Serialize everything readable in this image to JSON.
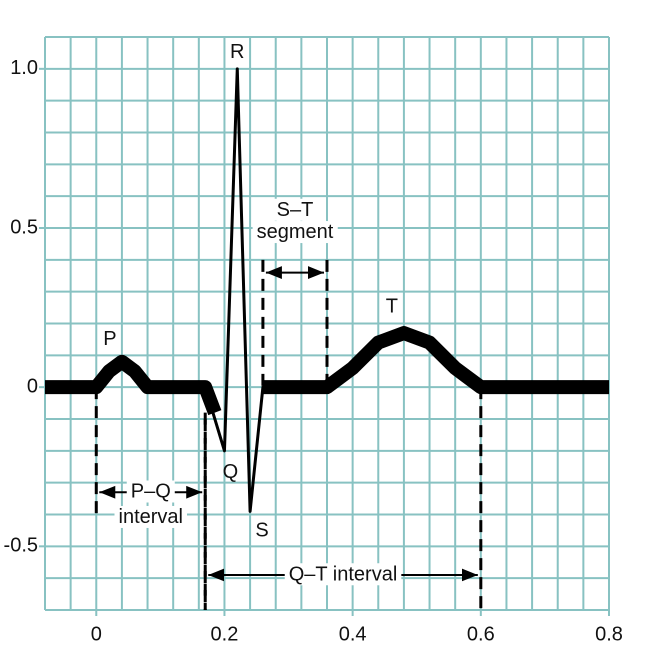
{
  "chart_data": {
    "type": "line",
    "xlim": [
      -0.08,
      0.8
    ],
    "ylim": [
      -0.7,
      1.1
    ],
    "xticks": [
      0,
      0.2,
      0.4,
      0.6,
      0.8
    ],
    "yticks": [
      {
        "value": 1,
        "label": "1.0"
      },
      0.5,
      0,
      -0.5
    ],
    "grid": true,
    "xgrid": [
      -0.08,
      -0.04,
      0,
      0.04,
      0.08,
      0.12,
      0.16,
      0.2,
      0.24,
      0.28,
      0.32,
      0.36,
      0.4,
      0.44,
      0.48,
      0.52,
      0.56,
      0.6,
      0.64,
      0.68,
      0.72,
      0.76,
      0.8
    ],
    "ygrid": [
      -0.7,
      -0.6,
      -0.5,
      -0.4,
      -0.3,
      -0.2,
      -0.1,
      0,
      0.1,
      0.2,
      0.3,
      0.4,
      0.5,
      0.6,
      0.7,
      0.8,
      0.9,
      1,
      1.1
    ],
    "series": [
      {
        "color": "#000000",
        "x": [
          -0.08,
          0,
          0.02,
          0.04,
          0.06,
          0.08,
          0.17,
          0.185,
          0.22,
          0.26,
          0.36,
          0.4,
          0.44,
          0.48,
          0.52,
          0.56,
          0.6,
          0.8
        ],
        "values": [
          0,
          0,
          0.05,
          0.08,
          0.05,
          0,
          0,
          -0.08,
          null,
          0,
          0,
          0.06,
          0.14,
          0.17,
          0.14,
          0.06,
          0,
          0
        ]
      },
      {
        "color": "#000000",
        "x": [
          0.17,
          0.2,
          0.22,
          0.24,
          0.26
        ],
        "values": [
          0,
          -0.2,
          1,
          -0.39,
          0
        ]
      }
    ],
    "wave_labels": [
      "P",
      "Q",
      "R",
      "S",
      "T"
    ],
    "intervals": [
      {
        "label": [
          "P–Q",
          "interval"
        ],
        "start": 0,
        "end": 0.17
      },
      {
        "label": [
          "S–T",
          "segment"
        ],
        "start": 0.26,
        "end": 0.36
      },
      {
        "label": [
          "Q–T interval"
        ],
        "start": 0.17,
        "end": 0.6
      }
    ]
  }
}
